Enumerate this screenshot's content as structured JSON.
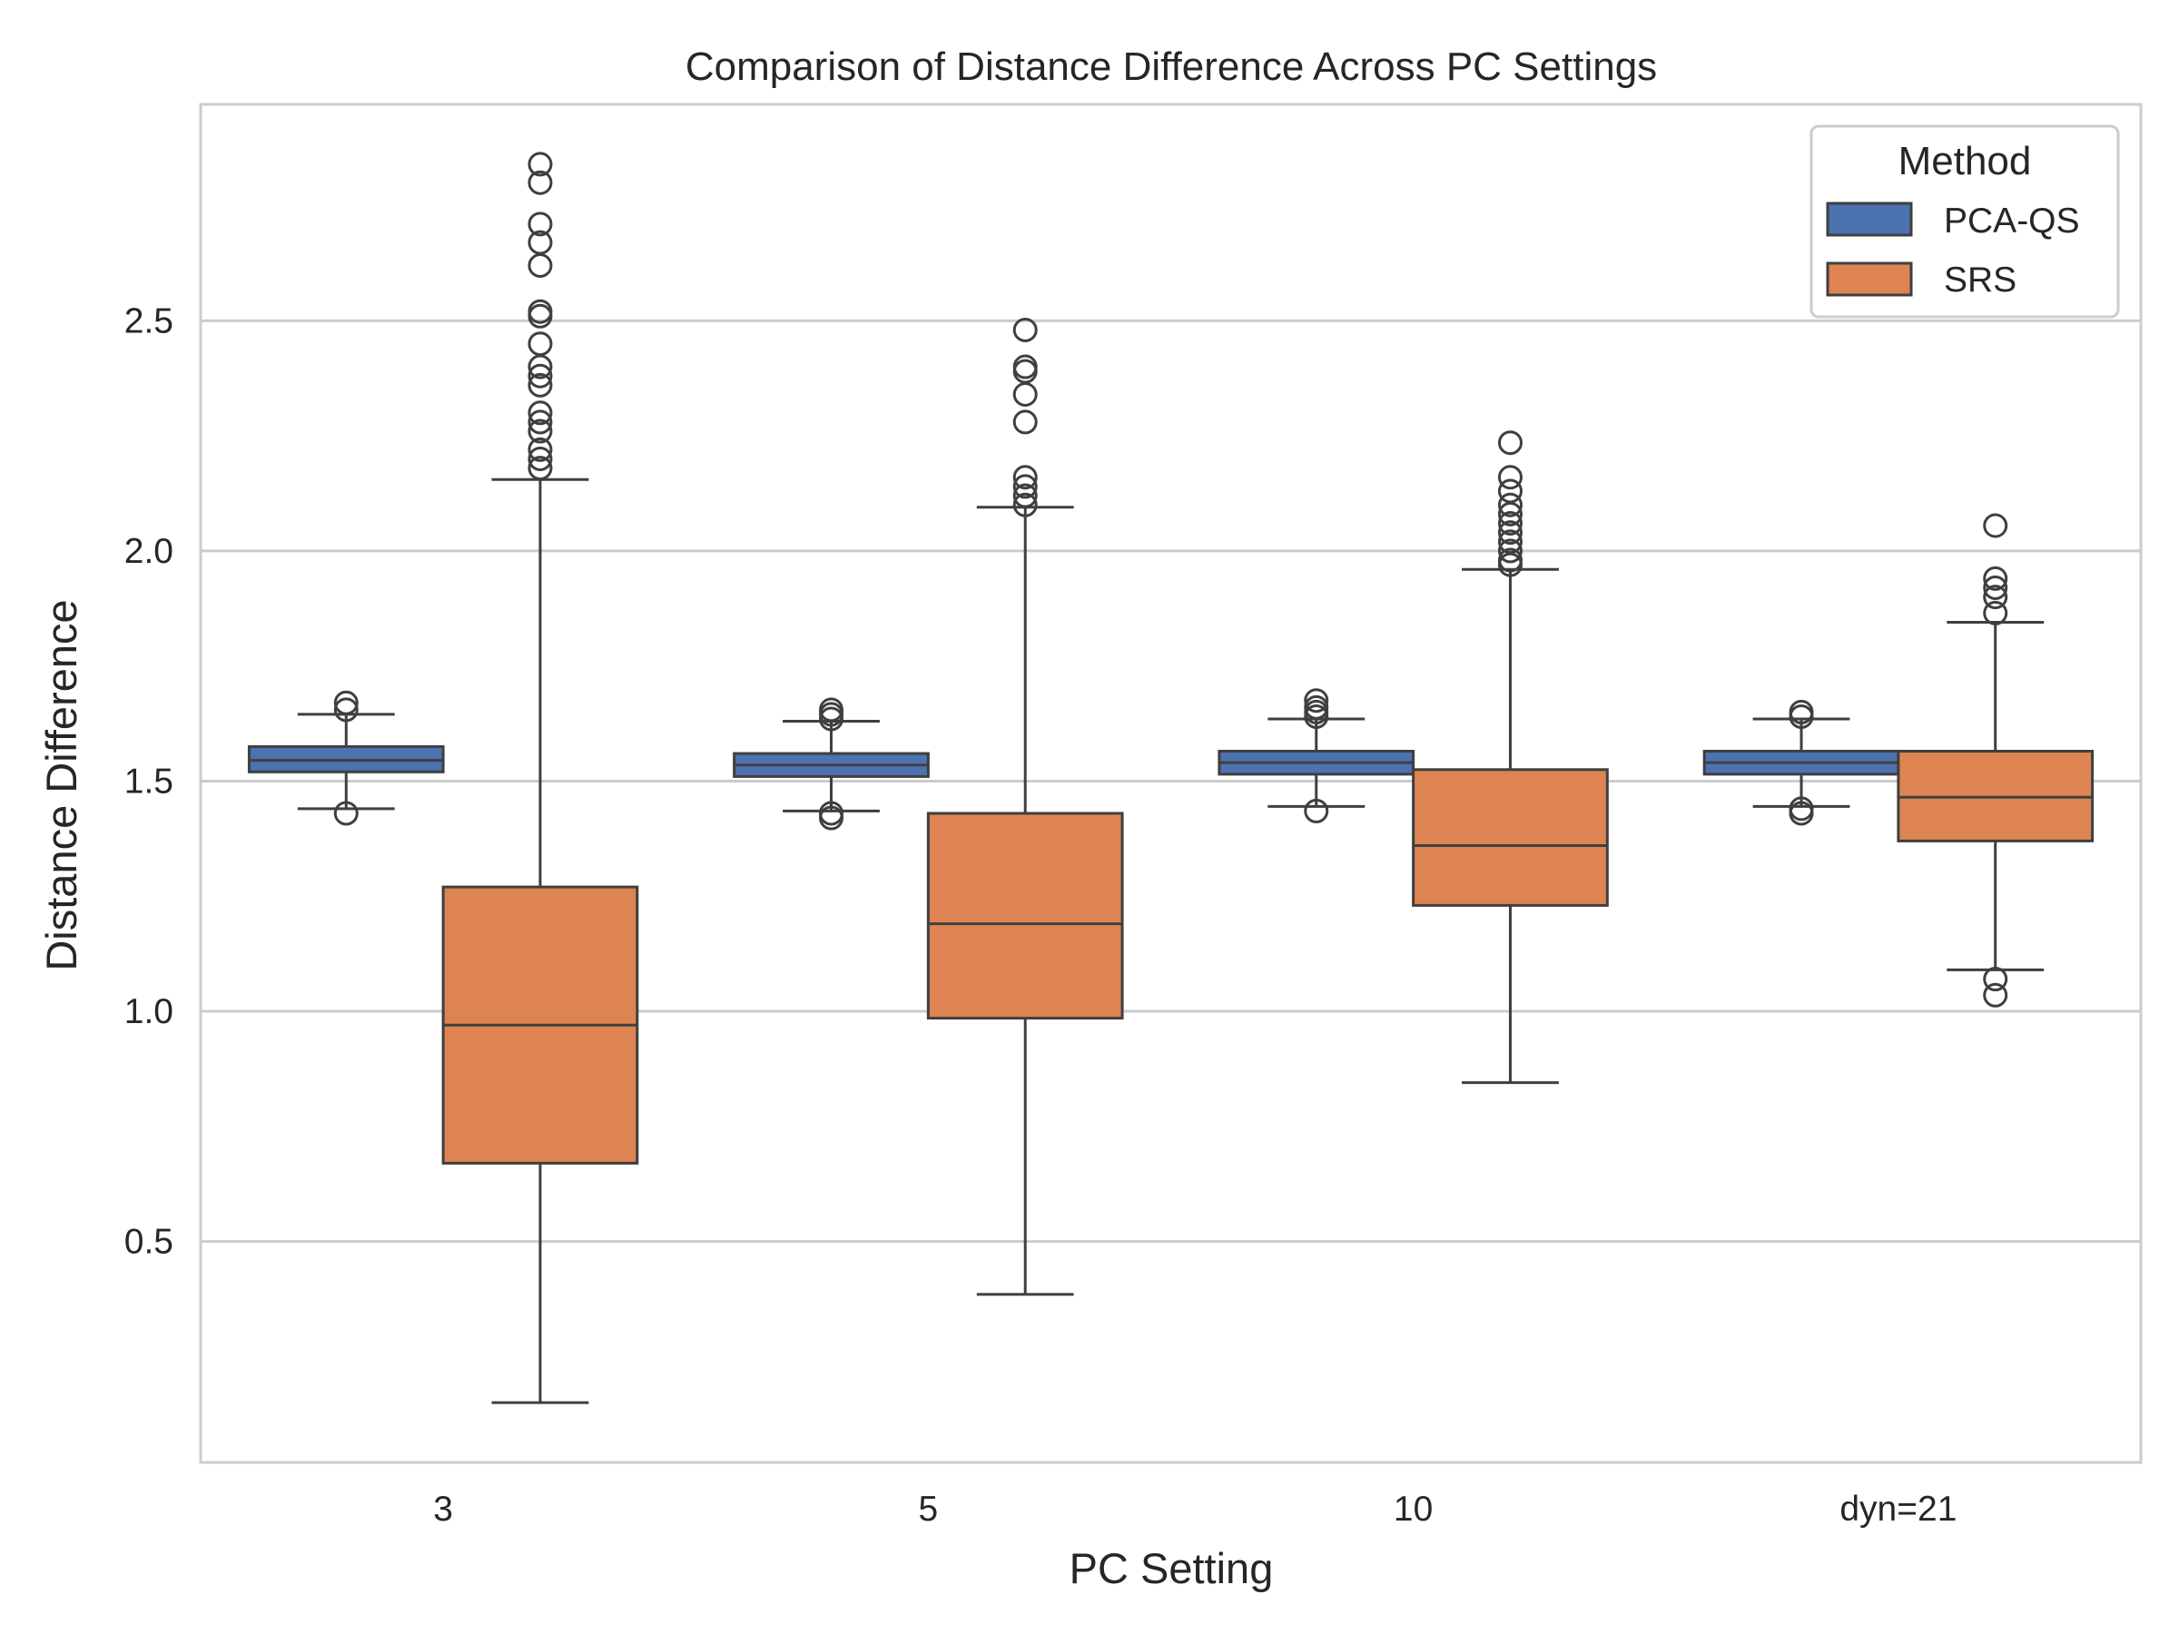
{
  "chart_data": {
    "type": "box",
    "title": "Comparison of Distance Difference Across PC Settings",
    "xlabel": "PC Setting",
    "ylabel": "Distance Difference",
    "categories": [
      "3",
      "5",
      "10",
      "dyn=21"
    ],
    "ylim": [
      0.02,
      2.97
    ],
    "yticks": [
      0.5,
      1.0,
      1.5,
      2.0,
      2.5
    ],
    "ytick_labels": [
      "0.5",
      "1.0",
      "1.5",
      "2.0",
      "2.5"
    ],
    "grid": "horizontal",
    "legend": {
      "title": "Method",
      "placement": "top-right"
    },
    "series": [
      {
        "name": "PCA-QS",
        "color": "#4c72b0",
        "boxes": [
          {
            "whisker_low": 1.44,
            "q1": 1.52,
            "median": 1.545,
            "q3": 1.575,
            "whisker_high": 1.645,
            "outliers": [
              1.43,
              1.655,
              1.67
            ]
          },
          {
            "whisker_low": 1.435,
            "q1": 1.51,
            "median": 1.535,
            "q3": 1.56,
            "whisker_high": 1.63,
            "outliers": [
              1.42,
              1.43,
              1.635,
              1.645,
              1.655
            ]
          },
          {
            "whisker_low": 1.445,
            "q1": 1.515,
            "median": 1.54,
            "q3": 1.565,
            "whisker_high": 1.635,
            "outliers": [
              1.435,
              1.64,
              1.65,
              1.66,
              1.675
            ]
          },
          {
            "whisker_low": 1.445,
            "q1": 1.515,
            "median": 1.54,
            "q3": 1.565,
            "whisker_high": 1.635,
            "outliers": [
              1.43,
              1.44,
              1.64,
              1.65
            ]
          }
        ]
      },
      {
        "name": "SRS",
        "color": "#dd8452",
        "boxes": [
          {
            "whisker_low": 0.15,
            "q1": 0.67,
            "median": 0.97,
            "q3": 1.27,
            "whisker_high": 2.155,
            "outliers": [
              2.18,
              2.2,
              2.22,
              2.26,
              2.28,
              2.3,
              2.36,
              2.38,
              2.4,
              2.45,
              2.51,
              2.52,
              2.62,
              2.67,
              2.71,
              2.8,
              2.84
            ]
          },
          {
            "whisker_low": 0.385,
            "q1": 0.985,
            "median": 1.19,
            "q3": 1.43,
            "whisker_high": 2.095,
            "outliers": [
              2.1,
              2.12,
              2.14,
              2.16,
              2.28,
              2.34,
              2.39,
              2.4,
              2.48
            ]
          },
          {
            "whisker_low": 0.845,
            "q1": 1.23,
            "median": 1.36,
            "q3": 1.525,
            "whisker_high": 1.96,
            "outliers": [
              1.97,
              1.98,
              2.0,
              2.02,
              2.04,
              2.06,
              2.08,
              2.1,
              2.13,
              2.16,
              2.235
            ]
          },
          {
            "whisker_low": 1.09,
            "q1": 1.37,
            "median": 1.465,
            "q3": 1.565,
            "whisker_high": 1.845,
            "outliers": [
              1.035,
              1.07,
              1.865,
              1.9,
              1.92,
              1.94,
              2.055
            ]
          }
        ]
      }
    ]
  }
}
